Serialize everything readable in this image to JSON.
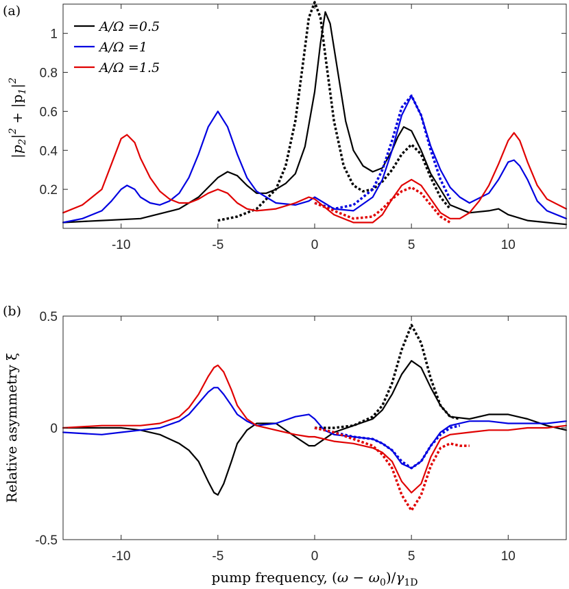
{
  "chart_data": [
    {
      "type": "line",
      "panel_label": "(a)",
      "ylabel": "|p_2|^2 + |p_1|^2",
      "ylabel_parts": [
        "|p",
        "2",
        "|",
        "2",
        " + |p",
        "1",
        "|",
        "2"
      ],
      "xlabel": "",
      "xlim": [
        -13,
        13
      ],
      "ylim": [
        0,
        1.15
      ],
      "x_ticks": [
        "-10",
        "-5",
        "0",
        "5",
        "10"
      ],
      "x_tick_values": [
        -10,
        -5,
        0,
        5,
        10
      ],
      "y_ticks": [
        "0.2",
        "0.4",
        "0.6",
        "0.8",
        "1"
      ],
      "y_tick_values": [
        0.2,
        0.4,
        0.6,
        0.8,
        1.0
      ],
      "legend": [
        {
          "label": "A/Ω =0.5",
          "color": "#000000"
        },
        {
          "label": "A/Ω =1",
          "color": "#0000e0"
        },
        {
          "label": "A/Ω =1.5",
          "color": "#e00000"
        }
      ],
      "series": [
        {
          "name": "A/Ω =0.5 solid",
          "color": "#000000",
          "style": "solid",
          "x": [
            -13,
            -11,
            -9,
            -7,
            -6,
            -5,
            -4.5,
            -4,
            -3.5,
            -3,
            -2.5,
            -2,
            -1.5,
            -1,
            -0.5,
            0,
            0.3,
            0.55,
            0.8,
            1.2,
            1.6,
            2,
            2.5,
            3,
            3.5,
            4,
            4.3,
            4.6,
            5,
            5.5,
            6,
            7,
            8,
            9,
            9.5,
            10,
            11,
            12,
            13
          ],
          "y": [
            0.03,
            0.04,
            0.05,
            0.1,
            0.16,
            0.26,
            0.29,
            0.27,
            0.22,
            0.18,
            0.18,
            0.2,
            0.23,
            0.28,
            0.42,
            0.7,
            0.95,
            1.11,
            1.05,
            0.8,
            0.55,
            0.4,
            0.32,
            0.29,
            0.31,
            0.4,
            0.47,
            0.52,
            0.5,
            0.4,
            0.28,
            0.12,
            0.08,
            0.09,
            0.1,
            0.07,
            0.04,
            0.03,
            0.02
          ]
        },
        {
          "name": "A/Ω =0.5 dotted",
          "color": "#000000",
          "style": "dotted",
          "x": [
            -5,
            -4,
            -3,
            -2,
            -1.5,
            -1,
            -0.6,
            -0.3,
            0,
            0.3,
            0.6,
            1,
            1.5,
            2,
            2.5,
            3,
            3.5,
            4,
            4.5,
            5,
            5.5,
            6,
            6.5,
            7
          ],
          "y": [
            0.04,
            0.06,
            0.1,
            0.2,
            0.32,
            0.55,
            0.85,
            1.08,
            1.16,
            1.08,
            0.85,
            0.55,
            0.32,
            0.22,
            0.19,
            0.2,
            0.24,
            0.3,
            0.38,
            0.43,
            0.38,
            0.26,
            0.16,
            0.1
          ]
        },
        {
          "name": "A/Ω =1 solid",
          "color": "#0000e0",
          "style": "solid",
          "x": [
            -13,
            -12,
            -11,
            -10.5,
            -10,
            -9.7,
            -9.3,
            -9,
            -8.5,
            -8,
            -7.5,
            -7,
            -6.5,
            -6,
            -5.5,
            -5,
            -4.5,
            -4,
            -3.5,
            -3,
            -2,
            -1,
            -0.3,
            0,
            0.5,
            1,
            2,
            3,
            3.5,
            4,
            4.5,
            5,
            5.5,
            6,
            6.5,
            7,
            7.5,
            8,
            9,
            9.5,
            10,
            10.3,
            10.6,
            11,
            11.5,
            12,
            13
          ],
          "y": [
            0.03,
            0.05,
            0.09,
            0.14,
            0.2,
            0.22,
            0.2,
            0.16,
            0.13,
            0.12,
            0.14,
            0.18,
            0.26,
            0.38,
            0.52,
            0.6,
            0.52,
            0.38,
            0.26,
            0.19,
            0.13,
            0.12,
            0.14,
            0.16,
            0.13,
            0.1,
            0.09,
            0.16,
            0.25,
            0.4,
            0.58,
            0.68,
            0.58,
            0.42,
            0.3,
            0.21,
            0.16,
            0.13,
            0.18,
            0.25,
            0.34,
            0.35,
            0.32,
            0.25,
            0.14,
            0.09,
            0.05
          ]
        },
        {
          "name": "A/Ω =1 dotted",
          "color": "#0000e0",
          "style": "dotted",
          "x": [
            0,
            1,
            2,
            3,
            3.5,
            4,
            4.5,
            5,
            5.5,
            6,
            6.5,
            7
          ],
          "y": [
            0.13,
            0.1,
            0.12,
            0.2,
            0.3,
            0.45,
            0.62,
            0.68,
            0.58,
            0.4,
            0.25,
            0.15
          ]
        },
        {
          "name": "A/Ω =1.5 solid",
          "color": "#e00000",
          "style": "solid",
          "x": [
            -13,
            -12,
            -11,
            -10.5,
            -10,
            -9.7,
            -9.3,
            -9,
            -8.5,
            -8,
            -7.5,
            -7,
            -6.5,
            -6,
            -5.5,
            -5,
            -4.5,
            -4,
            -3.5,
            -3,
            -2,
            -1,
            -0.3,
            0,
            0.5,
            1,
            2,
            3,
            3.5,
            4,
            4.5,
            5,
            5.5,
            6,
            6.5,
            7,
            7.5,
            8,
            8.5,
            9,
            9.5,
            10,
            10.3,
            10.6,
            11,
            11.5,
            12,
            13
          ],
          "y": [
            0.08,
            0.12,
            0.2,
            0.33,
            0.46,
            0.48,
            0.44,
            0.36,
            0.26,
            0.19,
            0.15,
            0.13,
            0.13,
            0.15,
            0.18,
            0.2,
            0.18,
            0.13,
            0.1,
            0.09,
            0.1,
            0.13,
            0.16,
            0.15,
            0.11,
            0.07,
            0.03,
            0.03,
            0.07,
            0.15,
            0.22,
            0.25,
            0.22,
            0.15,
            0.08,
            0.05,
            0.05,
            0.08,
            0.14,
            0.22,
            0.33,
            0.45,
            0.49,
            0.45,
            0.34,
            0.22,
            0.15,
            0.1
          ]
        },
        {
          "name": "A/Ω =1.5 dotted",
          "color": "#e00000",
          "style": "dotted",
          "x": [
            0,
            1,
            2,
            3,
            3.5,
            4,
            4.5,
            5,
            5.5,
            6,
            6.5,
            7
          ],
          "y": [
            0.13,
            0.09,
            0.05,
            0.06,
            0.1,
            0.15,
            0.19,
            0.21,
            0.18,
            0.12,
            0.06,
            0.03
          ]
        }
      ]
    },
    {
      "type": "line",
      "panel_label": "(b)",
      "ylabel": "Relative asymmetry ξ",
      "xlabel": "pump frequency, (ω − ω_0)/γ_1D",
      "xlabel_parts": [
        "pump frequency, (",
        "ω",
        " − ",
        "ω",
        "0",
        ")/",
        "γ",
        "1D"
      ],
      "xlim": [
        -13,
        13
      ],
      "ylim": [
        -0.5,
        0.5
      ],
      "x_ticks": [
        "-10",
        "-5",
        "0",
        "5",
        "10"
      ],
      "x_tick_values": [
        -10,
        -5,
        0,
        5,
        10
      ],
      "y_ticks": [
        "-0.5",
        "0",
        "0.5"
      ],
      "y_tick_values": [
        -0.5,
        0,
        0.5
      ],
      "series": [
        {
          "name": "A/Ω =0.5 solid",
          "color": "#000000",
          "style": "solid",
          "x": [
            -13,
            -11,
            -10,
            -9,
            -8,
            -7,
            -6.5,
            -6,
            -5.5,
            -5.2,
            -5,
            -4.7,
            -4.3,
            -4,
            -3.5,
            -3,
            -2,
            -1,
            -0.3,
            0,
            0.5,
            1,
            2,
            3,
            3.5,
            4,
            4.5,
            5,
            5.5,
            6,
            6.5,
            7,
            8,
            9,
            9.5,
            10,
            11,
            12,
            13
          ],
          "y": [
            0,
            0,
            0,
            -0.01,
            -0.03,
            -0.07,
            -0.1,
            -0.15,
            -0.24,
            -0.29,
            -0.3,
            -0.25,
            -0.15,
            -0.07,
            -0.01,
            0.02,
            0.02,
            -0.04,
            -0.08,
            -0.08,
            -0.05,
            -0.02,
            0.01,
            0.04,
            0.08,
            0.15,
            0.24,
            0.3,
            0.27,
            0.18,
            0.1,
            0.05,
            0.04,
            0.06,
            0.06,
            0.06,
            0.04,
            0.01,
            -0.01
          ]
        },
        {
          "name": "A/Ω =0.5 dotted",
          "color": "#000000",
          "style": "dotted",
          "x": [
            0,
            1,
            2,
            3,
            3.5,
            4,
            4.5,
            5,
            5.5,
            6,
            6.5,
            7,
            7.5
          ],
          "y": [
            0,
            0,
            0.01,
            0.05,
            0.1,
            0.2,
            0.35,
            0.46,
            0.38,
            0.22,
            0.1,
            0.05,
            0.04
          ]
        },
        {
          "name": "A/Ω =1 solid",
          "color": "#0000e0",
          "style": "solid",
          "x": [
            -13,
            -11,
            -10,
            -9,
            -8,
            -7,
            -6.5,
            -6,
            -5.5,
            -5.2,
            -5,
            -4.7,
            -4.3,
            -4,
            -3.5,
            -3,
            -2,
            -1,
            -0.3,
            0,
            0.5,
            1,
            2,
            3,
            3.5,
            4,
            4.5,
            5,
            5.5,
            6,
            6.5,
            7,
            8,
            9,
            10,
            11,
            12,
            13
          ],
          "y": [
            -0.02,
            -0.03,
            -0.02,
            -0.01,
            0,
            0.03,
            0.06,
            0.11,
            0.16,
            0.18,
            0.18,
            0.15,
            0.1,
            0.06,
            0.03,
            0.01,
            0.02,
            0.05,
            0.06,
            0.04,
            -0.01,
            -0.03,
            -0.04,
            -0.05,
            -0.07,
            -0.1,
            -0.16,
            -0.18,
            -0.15,
            -0.08,
            -0.02,
            0.01,
            0.03,
            0.03,
            0.02,
            0.02,
            0.02,
            0.03
          ]
        },
        {
          "name": "A/Ω =1 dotted",
          "color": "#0000e0",
          "style": "dotted",
          "x": [
            0,
            1,
            2,
            3,
            3.5,
            4,
            4.5,
            5,
            5.5,
            6,
            6.5,
            7,
            7.5
          ],
          "y": [
            0,
            -0.02,
            -0.04,
            -0.05,
            -0.07,
            -0.1,
            -0.15,
            -0.18,
            -0.15,
            -0.08,
            -0.03,
            0,
            0.01
          ]
        },
        {
          "name": "A/Ω =1.5 solid",
          "color": "#e00000",
          "style": "solid",
          "x": [
            -13,
            -11,
            -10,
            -9,
            -8,
            -7,
            -6.5,
            -6,
            -5.5,
            -5.2,
            -5,
            -4.7,
            -4.3,
            -4,
            -3.5,
            -3,
            -2,
            -1,
            -0.3,
            0,
            0.5,
            1,
            2,
            3,
            3.5,
            4,
            4.5,
            5,
            5.5,
            6,
            6.5,
            7,
            8,
            9,
            10,
            11,
            12,
            13
          ],
          "y": [
            0,
            0.01,
            0.01,
            0.01,
            0.02,
            0.05,
            0.09,
            0.15,
            0.23,
            0.27,
            0.28,
            0.25,
            0.17,
            0.1,
            0.04,
            0.01,
            -0.01,
            -0.03,
            -0.04,
            -0.04,
            -0.05,
            -0.06,
            -0.07,
            -0.09,
            -0.11,
            -0.15,
            -0.24,
            -0.29,
            -0.25,
            -0.13,
            -0.05,
            -0.03,
            -0.02,
            -0.01,
            -0.01,
            0,
            0,
            0.01
          ]
        },
        {
          "name": "A/Ω =1.5 dotted",
          "color": "#e00000",
          "style": "dotted",
          "x": [
            0,
            1,
            2,
            3,
            3.5,
            4,
            4.5,
            5,
            5.5,
            6,
            6.5,
            7,
            7.5,
            8
          ],
          "y": [
            0,
            -0.02,
            -0.05,
            -0.08,
            -0.12,
            -0.18,
            -0.3,
            -0.37,
            -0.3,
            -0.17,
            -0.09,
            -0.07,
            -0.08,
            -0.08
          ]
        }
      ]
    }
  ]
}
